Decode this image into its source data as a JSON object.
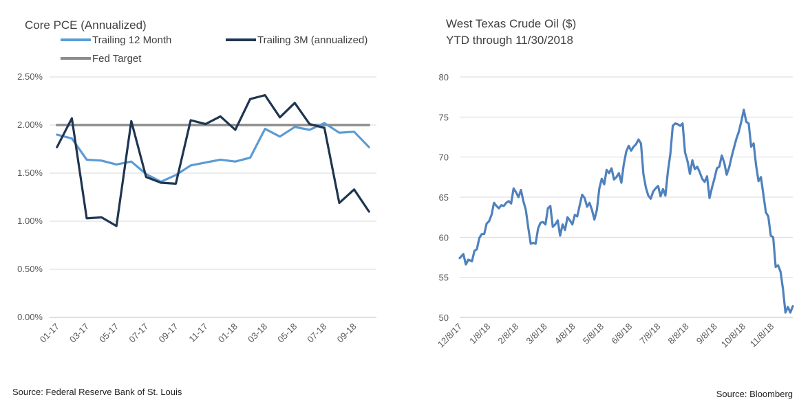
{
  "chart_data": [
    {
      "type": "line",
      "title": "Core PCE (Annualized)",
      "xlabel": "",
      "ylabel": "",
      "ylim": [
        0,
        2.5
      ],
      "y_tick_labels": [
        "0.00%",
        "0.50%",
        "1.00%",
        "1.50%",
        "2.00%",
        "2.50%"
      ],
      "y_ticks": [
        0,
        0.5,
        1.0,
        1.5,
        2.0,
        2.5
      ],
      "x": [
        "01-17",
        "02-17",
        "03-17",
        "04-17",
        "05-17",
        "06-17",
        "07-17",
        "08-17",
        "09-17",
        "10-17",
        "11-17",
        "12-17",
        "01-18",
        "02-18",
        "03-18",
        "04-18",
        "05-18",
        "06-18",
        "07-18",
        "08-18",
        "09-18",
        "10-18"
      ],
      "x_tick_labels": [
        "01-17",
        "03-17",
        "05-17",
        "07-17",
        "09-17",
        "11-17",
        "01-18",
        "03-18",
        "05-18",
        "07-18",
        "09-18"
      ],
      "grid": true,
      "legend_position": "top",
      "source": "Source: Federal Reserve Bank of St. Louis",
      "series": [
        {
          "name": "Trailing 12 Month",
          "color": "#5b9bd5",
          "values": [
            1.9,
            1.86,
            1.64,
            1.63,
            1.59,
            1.62,
            1.49,
            1.41,
            1.48,
            1.58,
            1.61,
            1.64,
            1.62,
            1.66,
            1.96,
            1.88,
            1.98,
            1.95,
            2.02,
            1.92,
            1.93,
            1.77
          ]
        },
        {
          "name": "Trailing 3M (annualized)",
          "color": "#1f3550",
          "values": [
            1.77,
            2.07,
            1.03,
            1.04,
            0.95,
            2.04,
            1.46,
            1.4,
            1.39,
            2.05,
            2.01,
            2.09,
            1.95,
            2.27,
            2.31,
            2.08,
            2.23,
            2.01,
            1.97,
            1.19,
            1.33,
            1.1
          ]
        },
        {
          "name": "Fed Target",
          "color": "#8c8c8c",
          "values": [
            2,
            2,
            2,
            2,
            2,
            2,
            2,
            2,
            2,
            2,
            2,
            2,
            2,
            2,
            2,
            2,
            2,
            2,
            2,
            2,
            2,
            2
          ]
        }
      ]
    },
    {
      "type": "line",
      "title": "West Texas Crude Oil ($)",
      "subtitle": "YTD through 11/30/2018",
      "xlabel": "",
      "ylabel": "",
      "ylim": [
        50,
        80
      ],
      "y_ticks": [
        50,
        55,
        60,
        65,
        70,
        75,
        80
      ],
      "x_tick_labels": [
        "12/8/17",
        "1/8/18",
        "2/8/18",
        "3/8/18",
        "4/8/18",
        "5/8/18",
        "6/8/18",
        "7/8/18",
        "8/8/18",
        "9/8/18",
        "10/8/18",
        "11/8/18"
      ],
      "x_start_label": "12/8/17",
      "x_end_label": "11/30/18",
      "grid": true,
      "source": "Source: Bloomberg",
      "series": [
        {
          "name": "",
          "color": "#4f81bd",
          "points": [
            [
              0,
              57.4
            ],
            [
              3,
              57.9
            ],
            [
              5,
              56.6
            ],
            [
              7,
              57.2
            ],
            [
              10,
              57.0
            ],
            [
              12,
              58.3
            ],
            [
              14,
              58.5
            ],
            [
              16,
              59.9
            ],
            [
              18,
              60.4
            ],
            [
              20,
              60.4
            ],
            [
              22,
              61.7
            ],
            [
              24,
              62.0
            ],
            [
              26,
              62.8
            ],
            [
              28,
              64.3
            ],
            [
              30,
              63.9
            ],
            [
              32,
              63.6
            ],
            [
              34,
              64.0
            ],
            [
              36,
              63.9
            ],
            [
              38,
              64.3
            ],
            [
              40,
              64.5
            ],
            [
              42,
              64.2
            ],
            [
              44,
              66.1
            ],
            [
              46,
              65.6
            ],
            [
              48,
              65.0
            ],
            [
              50,
              65.9
            ],
            [
              52,
              64.5
            ],
            [
              54,
              63.4
            ],
            [
              56,
              61.2
            ],
            [
              58,
              59.2
            ],
            [
              60,
              59.3
            ],
            [
              62,
              59.2
            ],
            [
              64,
              61.1
            ],
            [
              66,
              61.8
            ],
            [
              68,
              61.9
            ],
            [
              70,
              61.6
            ],
            [
              72,
              63.6
            ],
            [
              74,
              63.9
            ],
            [
              76,
              61.3
            ],
            [
              78,
              61.6
            ],
            [
              80,
              62.1
            ],
            [
              82,
              60.2
            ],
            [
              84,
              61.6
            ],
            [
              86,
              60.9
            ],
            [
              88,
              62.5
            ],
            [
              90,
              62.1
            ],
            [
              92,
              61.6
            ],
            [
              94,
              62.8
            ],
            [
              96,
              62.6
            ],
            [
              98,
              64.0
            ],
            [
              100,
              65.3
            ],
            [
              102,
              64.9
            ],
            [
              104,
              63.8
            ],
            [
              106,
              64.3
            ],
            [
              108,
              63.4
            ],
            [
              110,
              62.2
            ],
            [
              112,
              63.4
            ],
            [
              114,
              66.1
            ],
            [
              116,
              67.3
            ],
            [
              118,
              66.6
            ],
            [
              120,
              68.4
            ],
            [
              122,
              68.0
            ],
            [
              124,
              68.6
            ],
            [
              126,
              67.2
            ],
            [
              128,
              67.5
            ],
            [
              130,
              68.0
            ],
            [
              132,
              66.8
            ],
            [
              134,
              69.1
            ],
            [
              136,
              70.7
            ],
            [
              138,
              71.4
            ],
            [
              140,
              70.8
            ],
            [
              142,
              71.3
            ],
            [
              144,
              71.6
            ],
            [
              146,
              72.2
            ],
            [
              148,
              71.7
            ],
            [
              150,
              67.9
            ],
            [
              152,
              66.2
            ],
            [
              154,
              65.2
            ],
            [
              156,
              64.8
            ],
            [
              158,
              65.7
            ],
            [
              160,
              66.1
            ],
            [
              162,
              66.4
            ],
            [
              164,
              65.1
            ],
            [
              166,
              66.0
            ],
            [
              168,
              65.2
            ],
            [
              170,
              68.2
            ],
            [
              172,
              70.4
            ],
            [
              174,
              73.9
            ],
            [
              176,
              74.2
            ],
            [
              178,
              74.1
            ],
            [
              180,
              73.9
            ],
            [
              182,
              74.2
            ],
            [
              184,
              70.6
            ],
            [
              186,
              69.5
            ],
            [
              188,
              67.9
            ],
            [
              190,
              69.6
            ],
            [
              192,
              68.5
            ],
            [
              194,
              68.8
            ],
            [
              196,
              68.1
            ],
            [
              198,
              67.3
            ],
            [
              200,
              66.9
            ],
            [
              202,
              67.6
            ],
            [
              204,
              64.9
            ],
            [
              206,
              66.2
            ],
            [
              208,
              67.3
            ],
            [
              210,
              68.6
            ],
            [
              212,
              68.8
            ],
            [
              214,
              70.2
            ],
            [
              216,
              69.3
            ],
            [
              218,
              67.8
            ],
            [
              220,
              68.7
            ],
            [
              222,
              70.0
            ],
            [
              224,
              71.2
            ],
            [
              226,
              72.3
            ],
            [
              228,
              73.2
            ],
            [
              230,
              74.5
            ],
            [
              232,
              75.9
            ],
            [
              234,
              74.4
            ],
            [
              236,
              74.2
            ],
            [
              238,
              71.3
            ],
            [
              240,
              71.7
            ],
            [
              242,
              69.0
            ],
            [
              244,
              67.0
            ],
            [
              246,
              67.5
            ],
            [
              248,
              65.3
            ],
            [
              250,
              63.1
            ],
            [
              252,
              62.6
            ],
            [
              254,
              60.2
            ],
            [
              256,
              60.0
            ],
            [
              258,
              56.3
            ],
            [
              260,
              56.5
            ],
            [
              262,
              55.7
            ],
            [
              264,
              53.5
            ],
            [
              266,
              50.6
            ],
            [
              268,
              51.3
            ],
            [
              270,
              50.6
            ],
            [
              272,
              51.4
            ]
          ]
        }
      ]
    }
  ]
}
